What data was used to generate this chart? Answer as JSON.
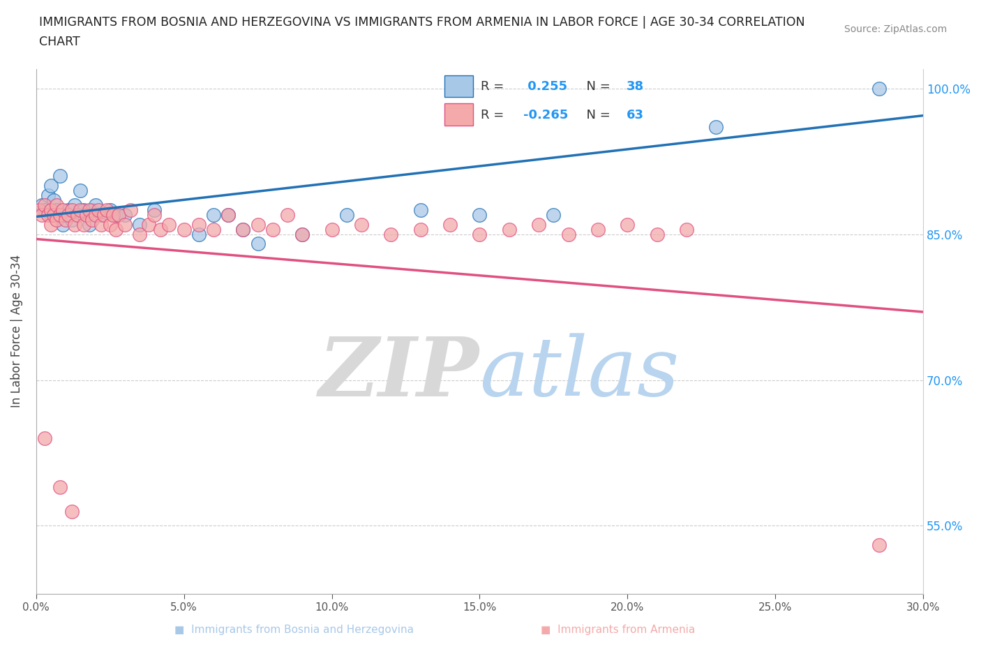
{
  "title_line1": "IMMIGRANTS FROM BOSNIA AND HERZEGOVINA VS IMMIGRANTS FROM ARMENIA IN LABOR FORCE | AGE 30-34 CORRELATION",
  "title_line2": "CHART",
  "source_text": "Source: ZipAtlas.com",
  "ylabel": "In Labor Force | Age 30-34",
  "xlim": [
    0.0,
    0.3
  ],
  "ylim": [
    0.48,
    1.02
  ],
  "yticks": [
    0.55,
    0.7,
    0.85,
    1.0
  ],
  "ytick_labels": [
    "55.0%",
    "70.0%",
    "85.0%",
    "100.0%"
  ],
  "xticks": [
    0.0,
    0.05,
    0.1,
    0.15,
    0.2,
    0.25,
    0.3
  ],
  "xtick_labels": [
    "0.0%",
    "5.0%",
    "10.0%",
    "15.0%",
    "20.0%",
    "25.0%",
    "30.0%"
  ],
  "color_bosnia": "#a8c8e8",
  "color_armenia": "#f4aaaa",
  "trendline_color_bosnia": "#2171b5",
  "trendline_color_armenia": "#e05080",
  "legend_r_bosnia": " 0.255",
  "legend_n_bosnia": "38",
  "legend_r_armenia": "-0.265",
  "legend_n_armenia": "63",
  "legend_color": "#2196F3",
  "bosnia_x": [
    0.002,
    0.003,
    0.004,
    0.005,
    0.005,
    0.006,
    0.007,
    0.008,
    0.009,
    0.01,
    0.011,
    0.012,
    0.013,
    0.014,
    0.015,
    0.016,
    0.017,
    0.018,
    0.019,
    0.02,
    0.022,
    0.025,
    0.027,
    0.03,
    0.035,
    0.04,
    0.055,
    0.06,
    0.065,
    0.07,
    0.075,
    0.09,
    0.105,
    0.13,
    0.15,
    0.175,
    0.23,
    0.285
  ],
  "bosnia_y": [
    0.88,
    0.875,
    0.89,
    0.9,
    0.87,
    0.885,
    0.875,
    0.91,
    0.86,
    0.87,
    0.875,
    0.865,
    0.88,
    0.87,
    0.895,
    0.875,
    0.87,
    0.86,
    0.875,
    0.88,
    0.87,
    0.875,
    0.87,
    0.87,
    0.86,
    0.875,
    0.85,
    0.87,
    0.87,
    0.855,
    0.84,
    0.85,
    0.87,
    0.875,
    0.87,
    0.87,
    0.96,
    1.0
  ],
  "armenia_x": [
    0.001,
    0.002,
    0.003,
    0.004,
    0.005,
    0.005,
    0.006,
    0.007,
    0.007,
    0.008,
    0.009,
    0.01,
    0.011,
    0.012,
    0.013,
    0.014,
    0.015,
    0.016,
    0.017,
    0.018,
    0.019,
    0.02,
    0.021,
    0.022,
    0.023,
    0.024,
    0.025,
    0.026,
    0.027,
    0.028,
    0.03,
    0.032,
    0.035,
    0.038,
    0.04,
    0.042,
    0.045,
    0.05,
    0.055,
    0.06,
    0.065,
    0.07,
    0.075,
    0.08,
    0.085,
    0.09,
    0.1,
    0.11,
    0.12,
    0.13,
    0.14,
    0.15,
    0.16,
    0.17,
    0.18,
    0.19,
    0.2,
    0.21,
    0.22,
    0.003,
    0.008,
    0.012,
    0.285
  ],
  "armenia_y": [
    0.875,
    0.87,
    0.88,
    0.87,
    0.875,
    0.86,
    0.87,
    0.88,
    0.865,
    0.87,
    0.875,
    0.865,
    0.87,
    0.875,
    0.86,
    0.87,
    0.875,
    0.86,
    0.87,
    0.875,
    0.865,
    0.87,
    0.875,
    0.86,
    0.87,
    0.875,
    0.86,
    0.87,
    0.855,
    0.87,
    0.86,
    0.875,
    0.85,
    0.86,
    0.87,
    0.855,
    0.86,
    0.855,
    0.86,
    0.855,
    0.87,
    0.855,
    0.86,
    0.855,
    0.87,
    0.85,
    0.855,
    0.86,
    0.85,
    0.855,
    0.86,
    0.85,
    0.855,
    0.86,
    0.85,
    0.855,
    0.86,
    0.85,
    0.855,
    0.64,
    0.59,
    0.565,
    0.53
  ],
  "bosnia_trendline_x": [
    0.0,
    0.3
  ],
  "bosnia_trendline_y": [
    0.868,
    0.972
  ],
  "armenia_trendline_x": [
    0.0,
    0.3
  ],
  "armenia_trendline_y": [
    0.845,
    0.77
  ]
}
